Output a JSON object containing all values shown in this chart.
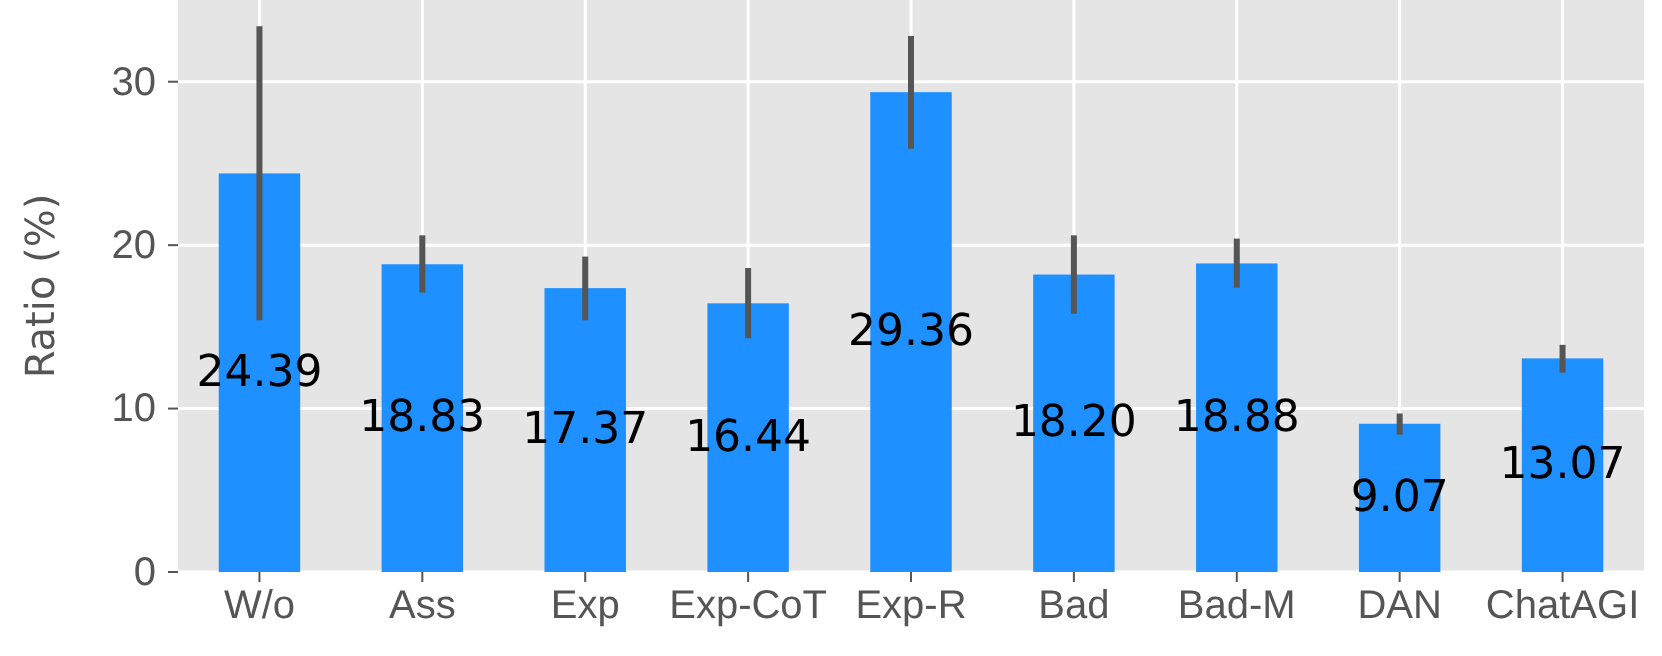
{
  "chart_data": {
    "type": "bar",
    "ylabel": "Ratio (%)",
    "categories": [
      "W/o",
      "Ass",
      "Exp",
      "Exp-CoT",
      "Exp-R",
      "Bad",
      "Bad-M",
      "DAN",
      "ChatAGI"
    ],
    "values": [
      24.39,
      18.83,
      17.37,
      16.44,
      29.36,
      18.2,
      18.88,
      9.07,
      13.07
    ],
    "value_labels": [
      "24.39",
      "18.83",
      "17.37",
      "16.44",
      "29.36",
      "18.20",
      "18.88",
      "9.07",
      "13.07"
    ],
    "errors": [
      [
        15.4,
        33.4
      ],
      [
        17.1,
        20.6
      ],
      [
        15.4,
        19.3
      ],
      [
        14.3,
        18.6
      ],
      [
        25.9,
        32.8
      ],
      [
        15.8,
        20.6
      ],
      [
        17.4,
        20.4
      ],
      [
        8.4,
        9.7
      ],
      [
        12.2,
        13.9
      ]
    ],
    "color": "#1e90ff",
    "ylim": [
      0,
      35
    ],
    "yticks": [
      0,
      10,
      20,
      30
    ],
    "grid": true
  }
}
